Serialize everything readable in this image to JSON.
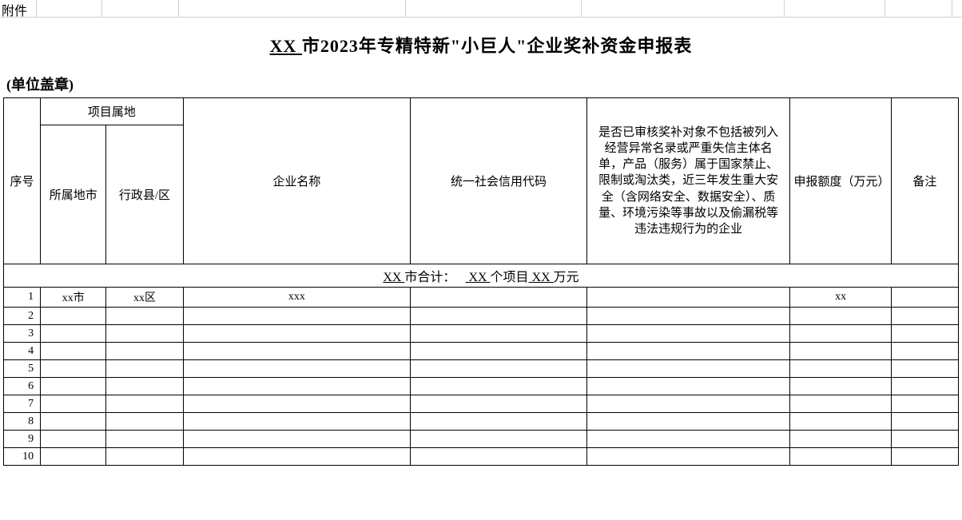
{
  "attachment_label": "附件",
  "title_prefix_ul": " XX ",
  "title_rest": "市2023年专精特新\"小巨人\"企业奖补资金申报表",
  "seal_label": "(单位盖章)",
  "headers": {
    "seq": "序号",
    "project_region": "项目属地",
    "city": "所属地市",
    "district": "行政县/区",
    "enterprise": "企业名称",
    "credit_code": "统一社会信用代码",
    "audit": "是否已审核奖补对象不包括被列入经营异常名录或严重失信主体名单，产品（服务）属于国家禁止、限制或淘汰类，近三年发生重大安全（含网络安全、数据安全）、质量、环境污染等事故以及偷漏税等违法违规行为的企业",
    "amount": "申报额度（万元）",
    "remark": "备注"
  },
  "subtotal": {
    "city_ul": "  XX  ",
    "label_mid": "市合计：",
    "proj_ul": "  XX  ",
    "proj_suffix": "个项目",
    "amt_ul": "  XX  ",
    "amt_suffix": "万元"
  },
  "rows": [
    {
      "n": "1",
      "city": "xx市",
      "district": "xx区",
      "enterprise": "xxx",
      "code": "",
      "audit": "",
      "amount": "xx",
      "remark": ""
    },
    {
      "n": "2",
      "city": "",
      "district": "",
      "enterprise": "",
      "code": "",
      "audit": "",
      "amount": "",
      "remark": ""
    },
    {
      "n": "3",
      "city": "",
      "district": "",
      "enterprise": "",
      "code": "",
      "audit": "",
      "amount": "",
      "remark": ""
    },
    {
      "n": "4",
      "city": "",
      "district": "",
      "enterprise": "",
      "code": "",
      "audit": "",
      "amount": "",
      "remark": ""
    },
    {
      "n": "5",
      "city": "",
      "district": "",
      "enterprise": "",
      "code": "",
      "audit": "",
      "amount": "",
      "remark": ""
    },
    {
      "n": "6",
      "city": "",
      "district": "",
      "enterprise": "",
      "code": "",
      "audit": "",
      "amount": "",
      "remark": ""
    },
    {
      "n": "7",
      "city": "",
      "district": "",
      "enterprise": "",
      "code": "",
      "audit": "",
      "amount": "",
      "remark": ""
    },
    {
      "n": "8",
      "city": "",
      "district": "",
      "enterprise": "",
      "code": "",
      "audit": "",
      "amount": "",
      "remark": ""
    },
    {
      "n": "9",
      "city": "",
      "district": "",
      "enterprise": "",
      "code": "",
      "audit": "",
      "amount": "",
      "remark": ""
    },
    {
      "n": "10",
      "city": "",
      "district": "",
      "enterprise": "",
      "code": "",
      "audit": "",
      "amount": "",
      "remark": ""
    }
  ],
  "top_grid_widths": [
    46,
    82,
    96,
    284,
    220,
    254,
    126,
    84,
    10
  ],
  "colors": {
    "grid_faint": "#d0d0d0",
    "border": "#000000",
    "bg": "#ffffff",
    "text": "#000000"
  }
}
